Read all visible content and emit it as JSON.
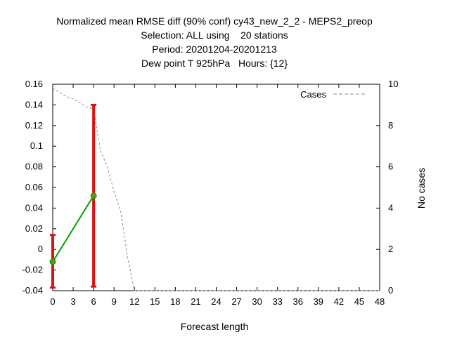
{
  "chart_data": {
    "type": "line",
    "title_lines": [
      "Normalized mean RMSE diff (90% conf) cy43_new_2_2 - MEPS2_preop",
      "Selection: ALL using    20 stations",
      "Period: 20201204-20201213",
      "Dew point T 925hPa   Hours: {12}"
    ],
    "xlabel": "Forecast length",
    "ylabel_right": "No cases",
    "xlim": [
      0,
      48
    ],
    "ylim": [
      -0.04,
      0.16
    ],
    "y2lim": [
      0,
      10
    ],
    "x_ticks": [
      0,
      3,
      6,
      9,
      12,
      15,
      18,
      21,
      24,
      27,
      30,
      33,
      36,
      39,
      42,
      45,
      48
    ],
    "y_ticks": [
      "-0.04",
      "-0.02",
      "0",
      "0.02",
      "0.04",
      "0.06",
      "0.08",
      "0.1",
      "0.12",
      "0.14",
      "0.16"
    ],
    "y2_ticks": [
      0,
      2,
      4,
      6,
      8,
      10
    ],
    "legend": {
      "label": "Cases",
      "position": "top-right"
    },
    "grid": false,
    "series": [
      {
        "kind": "mean_diff",
        "color": "#00a000",
        "marker_color": "#6b8e23",
        "x": [
          0,
          6
        ],
        "y": [
          -0.012,
          0.052
        ]
      },
      {
        "kind": "confidence_interval",
        "color": "#dd1111",
        "x": [
          0,
          6
        ],
        "low": [
          -0.037,
          -0.036
        ],
        "high": [
          0.014,
          0.14
        ]
      },
      {
        "name": "Cases",
        "axis": "right",
        "color": "#888888",
        "dash": true,
        "x": [
          0,
          1,
          2,
          3,
          4,
          5,
          6,
          7,
          8,
          9,
          10,
          11,
          12,
          13,
          48
        ],
        "y": [
          9.8,
          9.6,
          9.4,
          9.3,
          9.1,
          8.9,
          8.8,
          6.8,
          6.0,
          4.8,
          3.8,
          1.6,
          0,
          0,
          0
        ]
      }
    ]
  }
}
